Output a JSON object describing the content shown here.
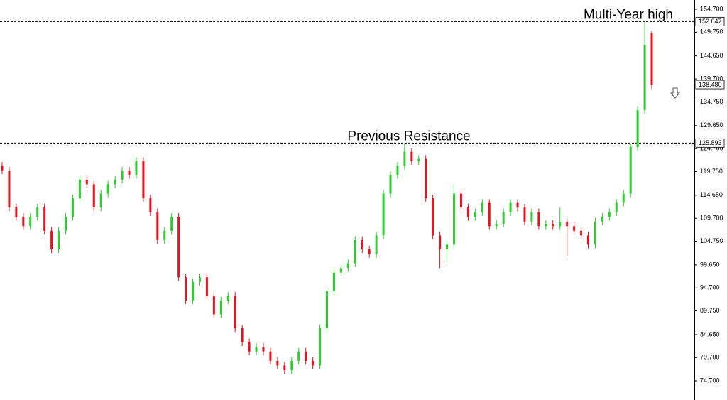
{
  "chart_data": {
    "type": "candlestick",
    "ylim": [
      70.57,
      156.69
    ],
    "yticks": [
      {
        "value": 154.7,
        "label": "154.700"
      },
      {
        "value": 149.75,
        "label": "149.750"
      },
      {
        "value": 144.65,
        "label": "144.650"
      },
      {
        "value": 139.7,
        "label": "139.700"
      },
      {
        "value": 134.75,
        "label": "134.750"
      },
      {
        "value": 129.65,
        "label": "129.650"
      },
      {
        "value": 124.7,
        "label": "124.700"
      },
      {
        "value": 119.75,
        "label": "119.750"
      },
      {
        "value": 114.65,
        "label": "114.650"
      },
      {
        "value": 109.7,
        "label": "109.700"
      },
      {
        "value": 104.75,
        "label": "104.750"
      },
      {
        "value": 99.65,
        "label": "99.650"
      },
      {
        "value": 94.7,
        "label": "94.700"
      },
      {
        "value": 89.75,
        "label": "89.750"
      },
      {
        "value": 84.65,
        "label": "84.650"
      },
      {
        "value": 79.7,
        "label": "79.700"
      },
      {
        "value": 74.7,
        "label": "74.700"
      }
    ],
    "up_color": "#2ecc2e",
    "down_color": "#e8121e",
    "open": [
      121,
      120,
      112,
      110,
      108,
      110,
      112,
      107,
      103,
      107,
      110,
      114,
      118,
      117,
      112,
      115,
      117,
      118,
      120,
      119,
      122,
      114,
      111,
      105,
      107,
      110,
      97,
      92,
      96,
      97,
      93,
      89,
      92,
      93,
      86,
      83,
      81,
      82,
      81,
      79,
      78,
      77,
      79,
      81,
      79,
      78,
      86,
      94,
      98,
      99,
      100,
      105,
      103,
      102,
      106,
      115,
      119,
      121,
      124,
      122,
      122.5,
      114,
      106,
      103,
      104,
      115,
      112,
      110,
      111,
      113,
      108,
      108.5,
      111,
      113,
      112,
      109,
      111,
      108,
      108.5,
      108,
      109,
      108,
      107,
      106,
      104,
      109,
      110,
      111,
      113,
      115,
      125,
      133,
      149.5
    ],
    "high": [
      121.8,
      120.8,
      112.8,
      110.8,
      110.8,
      112.8,
      112.8,
      107.8,
      107.8,
      110.8,
      114.8,
      118.8,
      118.8,
      117.8,
      115.8,
      117.8,
      118.8,
      120.8,
      120.8,
      122.8,
      122.8,
      114.8,
      111.8,
      107.8,
      110.8,
      110.8,
      97.8,
      96.8,
      97.8,
      97.8,
      93.8,
      92.8,
      93.8,
      93.8,
      86.8,
      83.8,
      82.8,
      82.8,
      81.8,
      79.8,
      78.8,
      79.8,
      81.8,
      81.8,
      79.8,
      86.8,
      94.8,
      98.8,
      99.8,
      100.8,
      105.8,
      105.8,
      103.8,
      106.8,
      115.8,
      119.8,
      121.8,
      125.9,
      124.8,
      123.3,
      123.3,
      114.8,
      106.8,
      104.8,
      117,
      115.8,
      112.8,
      111.8,
      113.8,
      113.8,
      109.3,
      111.8,
      113.8,
      113.8,
      112.8,
      111.8,
      111.8,
      109.3,
      109.3,
      112,
      109.8,
      108.8,
      107.8,
      106.8,
      109.8,
      110.8,
      111.8,
      113.8,
      115.8,
      125.8,
      133.8,
      152.047,
      150
    ],
    "low": [
      119.2,
      111.2,
      109.2,
      107.2,
      107.2,
      109.2,
      106.2,
      102.2,
      102.2,
      106.2,
      109.2,
      113.2,
      116.2,
      111.2,
      111.2,
      114.2,
      116.2,
      117.2,
      118.2,
      118.2,
      113.2,
      110.2,
      104.2,
      104.2,
      106.2,
      96.2,
      91.2,
      91.2,
      95.2,
      92.2,
      88.2,
      88.2,
      91.2,
      85.2,
      82.2,
      80.2,
      80.2,
      80.2,
      78.2,
      77.2,
      76.2,
      76.2,
      78.2,
      78.2,
      77.2,
      77.2,
      85.2,
      93.2,
      97.2,
      98.2,
      99.2,
      102.2,
      101.2,
      101.2,
      105.2,
      114.2,
      118.2,
      120.2,
      121.2,
      121.2,
      113.2,
      105.2,
      99,
      100.2,
      103.2,
      111.2,
      109.2,
      109.2,
      110.2,
      107.2,
      107.2,
      107.7,
      110.2,
      111.2,
      108.2,
      108.2,
      107.2,
      107.2,
      107.2,
      107.2,
      101.5,
      106.2,
      105.2,
      103.2,
      103.2,
      108.2,
      109.2,
      110.2,
      112.2,
      114.2,
      124.2,
      132.2,
      137.5
    ],
    "close": [
      120,
      112,
      110,
      108,
      110,
      112,
      107,
      103,
      107,
      110,
      114,
      118,
      117,
      112,
      115,
      117,
      118,
      120,
      119,
      122,
      114,
      111,
      105,
      107,
      110,
      97,
      92,
      96,
      97,
      93,
      89,
      92,
      93,
      86,
      83,
      81,
      82,
      81,
      79,
      78,
      77,
      79,
      81,
      79,
      78,
      86,
      94,
      98,
      99,
      100,
      105,
      103,
      102,
      106,
      115,
      119,
      121,
      124,
      122,
      122.5,
      114,
      106,
      103,
      104,
      115,
      112,
      110,
      111,
      113,
      108,
      108.5,
      111,
      113,
      112,
      109,
      111,
      108,
      108.5,
      108,
      109,
      108,
      107,
      106,
      104,
      109,
      110,
      111,
      113,
      115,
      125,
      133,
      147,
      138.48
    ],
    "hlines": [
      {
        "value": 152.047,
        "label": "152.047",
        "text": "Multi-Year high"
      },
      {
        "value": 125.893,
        "label": "125.893",
        "text": "Previous Resistance"
      }
    ],
    "last_price": {
      "value": 138.48,
      "label": "138.480"
    }
  }
}
